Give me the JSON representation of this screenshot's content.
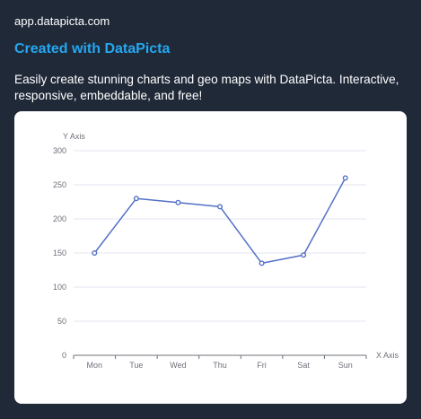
{
  "header": {
    "site_url": "app.datapicta.com",
    "title": "Created with DataPicta",
    "description": "Easily create stunning charts and geo maps with DataPicta. Interactive, responsive, embeddable, and free!"
  },
  "colors": {
    "background": "#202938",
    "title": "#25a7f0",
    "line": "#5470c6",
    "grid": "#e0e6f1",
    "axis": "#6e7079"
  },
  "chart_data": {
    "type": "line",
    "categories": [
      "Mon",
      "Tue",
      "Wed",
      "Thu",
      "Fri",
      "Sat",
      "Sun"
    ],
    "series": [
      {
        "values": [
          150,
          230,
          224,
          218,
          135,
          147,
          260
        ]
      }
    ],
    "xlabel": "X Axis",
    "ylabel": "Y Axis",
    "ylim": [
      0,
      300
    ],
    "yticks": [
      0,
      50,
      100,
      150,
      200,
      250,
      300
    ],
    "grid": true,
    "legend": "none"
  }
}
